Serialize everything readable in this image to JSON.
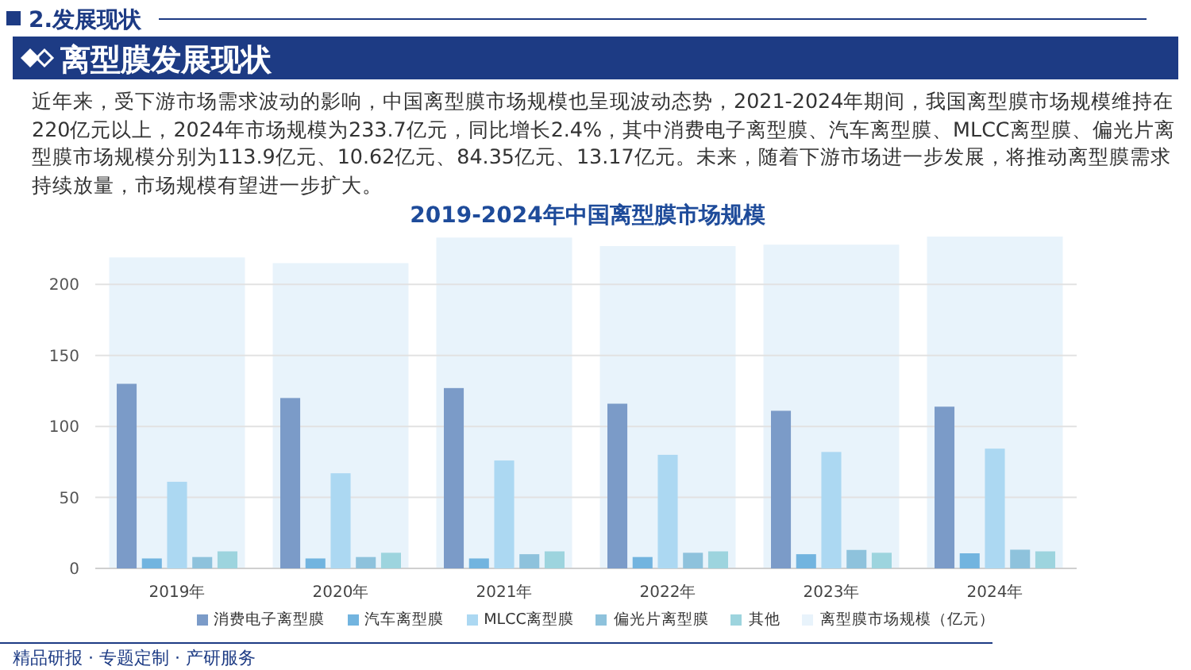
{
  "chart_data": {
    "type": "bar",
    "title": "2019-2024年中国离型膜市场规模",
    "categories": [
      "2019年",
      "2020年",
      "2021年",
      "2022年",
      "2023年",
      "2024年"
    ],
    "series": [
      {
        "name": "消费电子离型膜",
        "color": "#7b9bc8",
        "values": [
          130,
          120,
          127,
          116,
          111,
          113.9
        ]
      },
      {
        "name": "汽车离型膜",
        "color": "#72b4df",
        "values": [
          7,
          7,
          7,
          8,
          10,
          10.62
        ]
      },
      {
        "name": "MLCC离型膜",
        "color": "#acd8f2",
        "values": [
          61,
          67,
          76,
          80,
          82,
          84.35
        ]
      },
      {
        "name": "偏光片离型膜",
        "color": "#8ec2dc",
        "values": [
          8,
          8,
          10,
          11,
          13,
          13.17
        ]
      },
      {
        "name": "其他",
        "color": "#9dd4de",
        "values": [
          12,
          11,
          12,
          12,
          11,
          12
        ]
      },
      {
        "name": "离型膜市场规模（亿元）",
        "color": "#e8f3fb",
        "values": [
          219,
          215,
          233,
          227,
          228,
          233.7
        ]
      }
    ],
    "ylim": [
      0,
      233.7
    ],
    "yticks": [
      0,
      50,
      100,
      150,
      200
    ],
    "grid": "y",
    "legend": "bottom",
    "annotations": [
      "2.发展现状",
      "离型膜发展现状",
      "近年来，受下游市场需求波动的影响，中国离型膜市场规模也呈现波动态势，2021-2024年期间，我国离型膜市场规模维持在220亿元以上，2024年市场规模为233.7亿元，同比增长2.4%，其中消费电子离型膜、汽车离型膜、MLCC离型膜、偏光片离型膜市场规模分别为113.9亿元、10.62亿元、84.35亿元、13.17亿元。未来，随着下游市场进一步发展，将推动离型膜需求持续放量，市场规模有望进一步扩大。",
      "精品研报 · 专题定制 · 产研服务"
    ]
  }
}
